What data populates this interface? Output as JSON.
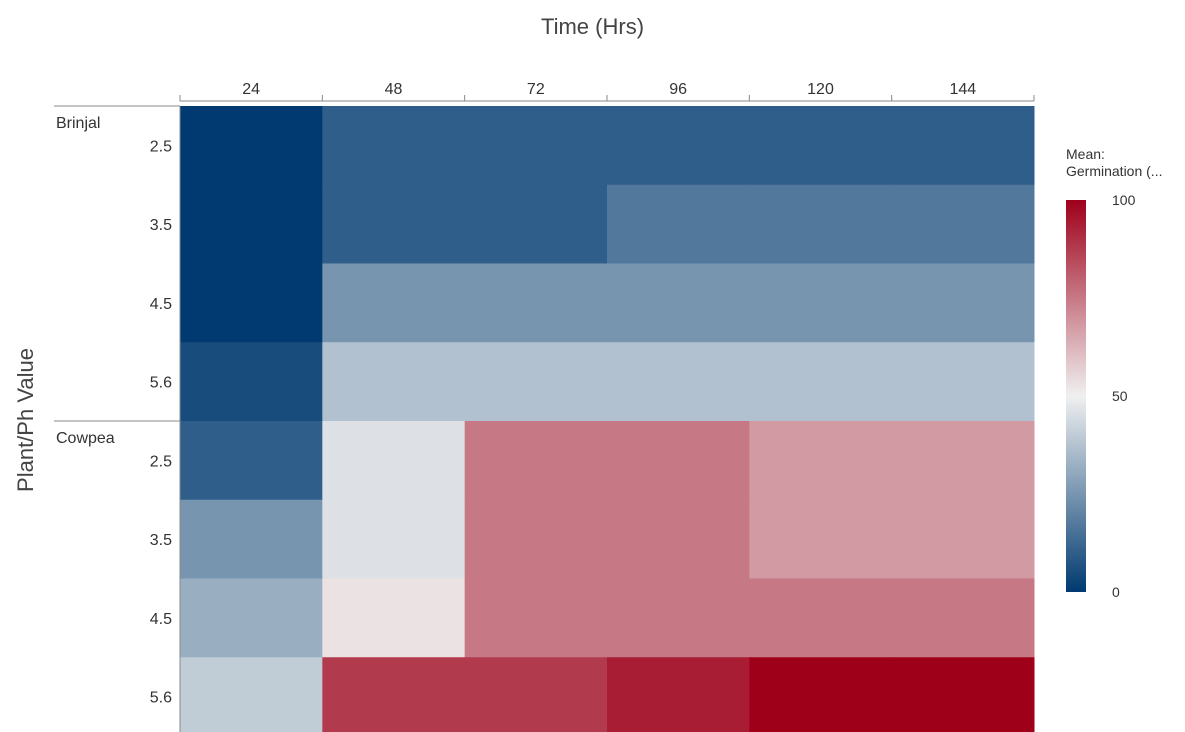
{
  "chart_data": {
    "type": "heatmap",
    "xlabel": "Time (Hrs)",
    "ylabel": "Plant/Ph Value",
    "x_categories": [
      "24",
      "48",
      "72",
      "96",
      "120",
      "144"
    ],
    "groups": [
      {
        "name": "Brinjal",
        "rows": [
          "2.5",
          "3.5",
          "4.5",
          "5.6"
        ]
      },
      {
        "name": "Cowpea",
        "rows": [
          "2.5",
          "3.5",
          "4.5",
          "5.6"
        ]
      }
    ],
    "values": [
      [
        0,
        10,
        10,
        10,
        10,
        10
      ],
      [
        0,
        10,
        10,
        17,
        17,
        17
      ],
      [
        0,
        25,
        25,
        25,
        25,
        25
      ],
      [
        5,
        37,
        37,
        37,
        37,
        37
      ],
      [
        10,
        46,
        75,
        75,
        68,
        68
      ],
      [
        25,
        46,
        75,
        75,
        68,
        68
      ],
      [
        32,
        53,
        75,
        75,
        75,
        75
      ],
      [
        40,
        88,
        88,
        94,
        100,
        100
      ]
    ],
    "color_scale": {
      "title_line1": "Mean:",
      "title_line2": "Germination (...",
      "min": 0,
      "mid": 50,
      "max": 100,
      "tick_labels": [
        "100",
        "50",
        "0"
      ],
      "colors": {
        "low": "#003a70",
        "mid": "#f0f0f0",
        "high": "#9e001a"
      }
    }
  }
}
